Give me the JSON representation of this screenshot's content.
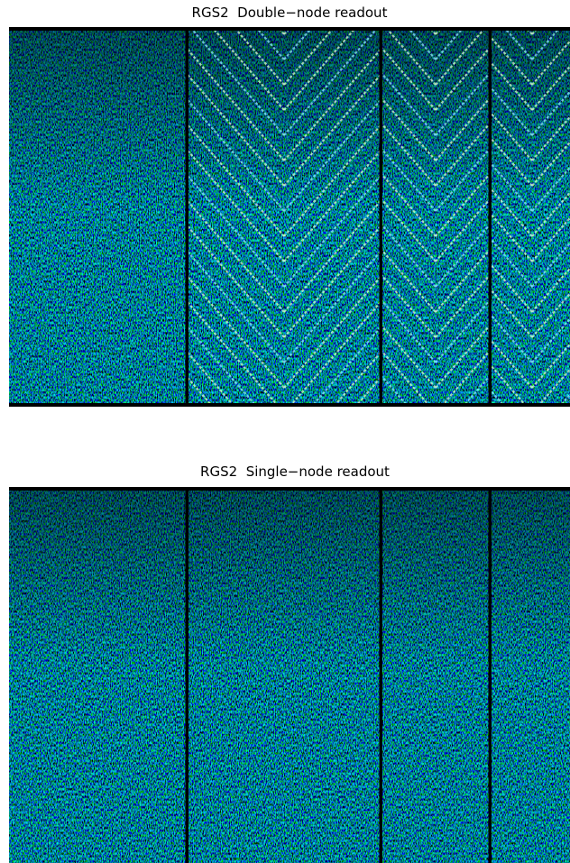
{
  "panels": [
    {
      "title": "RGS2  Double−node readout"
    },
    {
      "title": "RGS2  Single−node readout"
    }
  ]
}
